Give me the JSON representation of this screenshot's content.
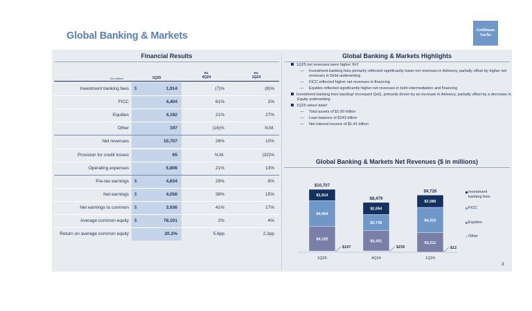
{
  "page": {
    "title": "Global Banking & Markets",
    "page_number": "3"
  },
  "logo": {
    "line1": "Goldman",
    "line2": "Sachs"
  },
  "financial_results": {
    "title": "Financial Results",
    "unit": "$ in millions",
    "columns": [
      "1Q25",
      "vs.\n4Q24",
      "vs.\n1Q24"
    ],
    "rows": [
      {
        "label": "Investment banking fees",
        "currency": "$",
        "q": "1,914",
        "vs4q": "(7)%",
        "vs1q": "(8)%"
      },
      {
        "label": "FICC",
        "currency": "",
        "q": "4,404",
        "vs4q": "61%",
        "vs1q": "2%"
      },
      {
        "label": "Equities",
        "currency": "",
        "q": "4,192",
        "vs4q": "21%",
        "vs1q": "27%"
      },
      {
        "label": "Other",
        "currency": "",
        "q": "197",
        "vs4q": "(16)%",
        "vs1q": "N.M."
      },
      {
        "label": "Net revenues",
        "currency": "",
        "q": "10,707",
        "vs4q": "26%",
        "vs1q": "10%"
      },
      {
        "label": "Provision for credit losses",
        "currency": "",
        "q": "65",
        "vs4q": "N.M.",
        "vs1q": "(32)%"
      },
      {
        "label": "Operating expenses",
        "currency": "",
        "q": "5,808",
        "vs4q": "21%",
        "vs1q": "13%"
      },
      {
        "label": "Pre-tax earnings",
        "currency": "$",
        "q": "4,834",
        "vs4q": "29%",
        "vs1q": "8%"
      },
      {
        "label": "Net earnings",
        "currency": "$",
        "q": "4,056",
        "vs4q": "38%",
        "vs1q": "15%"
      },
      {
        "label": "Net earnings to common",
        "currency": "$",
        "q": "3,936",
        "vs4q": "41%",
        "vs1q": "17%"
      },
      {
        "label": "Average common equity",
        "currency": "$",
        "q": "78,101",
        "vs4q": "2%",
        "vs1q": "4%"
      },
      {
        "label": "Return on average common equity",
        "currency": "",
        "q": "20.2%",
        "vs4q": "5.6pp",
        "vs1q": "2.2pp"
      }
    ]
  },
  "highlights": {
    "title": "Global Banking & Markets Highlights",
    "items": [
      {
        "level": 1,
        "text": "1Q25 net revenues were higher YoY"
      },
      {
        "level": 2,
        "text": "Investment banking fees primarily reflected significantly lower net revenues in Advisory, partially offset by higher net revenues in Debt underwriting"
      },
      {
        "level": 2,
        "text": "FICC reflected higher net revenues in financing"
      },
      {
        "level": 2,
        "text": "Equities reflected significantly higher net revenues in both intermediation and financing"
      },
      {
        "level": 1,
        "text": "Investment banking fees backlog³ increased QoQ, primarily driven by an increase in Advisory, partially offset by a decrease in Equity underwriting"
      },
      {
        "level": 1,
        "text": "1Q25 select data³:"
      },
      {
        "level": 2,
        "text": "Total assets of $1.50 trillion"
      },
      {
        "level": 2,
        "text": "Loan balance of $143 billion"
      },
      {
        "level": 2,
        "text": "Net interest income of $1.41 billion"
      }
    ]
  },
  "chart_data": {
    "type": "bar",
    "stacked": true,
    "title": "Global Banking & Markets Net Revenues ($ in millions)",
    "categories": [
      "1Q25",
      "4Q24",
      "1Q24"
    ],
    "totals": [
      "$10,707",
      "$8,479",
      "$9,726"
    ],
    "series": [
      {
        "name": "Other",
        "values": [
          197,
          235,
          12
        ],
        "labels": [
          "$197",
          "$235",
          "$12"
        ],
        "color": "#c5d4e8"
      },
      {
        "name": "Equities",
        "values": [
          4192,
          3451,
          3311
        ],
        "labels": [
          "$4,192",
          "$3,451",
          "$3,311"
        ],
        "color": "#7a7fa8"
      },
      {
        "name": "FICC",
        "values": [
          4404,
          2739,
          4323
        ],
        "labels": [
          "$4,404",
          "$2,739",
          "$4,323"
        ],
        "color": "#6f97c8"
      },
      {
        "name": "Investment banking fees",
        "values": [
          1914,
          2054,
          2080
        ],
        "labels": [
          "$1,914",
          "$2,054",
          "$2,080"
        ],
        "color": "#14305e"
      }
    ],
    "legend": [
      "Investment banking fees",
      "FICC",
      "Equities",
      "Other"
    ],
    "legend_position": "right"
  }
}
